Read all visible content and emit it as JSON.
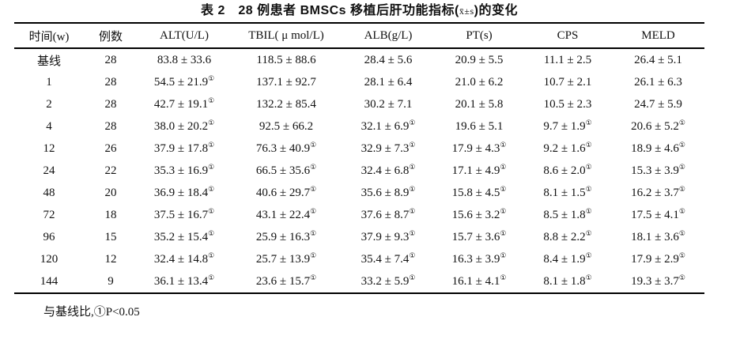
{
  "title": {
    "prefix": "表 2　28 例患者 BMSCs 移植后肝功能指标(",
    "stat": "x̄±s",
    "suffix": ")的变化"
  },
  "footnote": "与基线比,①P<0.05",
  "table": {
    "columns": [
      {
        "id": "time",
        "label": "时间(w)"
      },
      {
        "id": "cases",
        "label": "例数"
      },
      {
        "id": "alt",
        "label": "ALT(U/L)"
      },
      {
        "id": "tbil",
        "label": "TBIL( μ mol/L)"
      },
      {
        "id": "alb",
        "label": "ALB(g/L)"
      },
      {
        "id": "pt",
        "label": "PT(s)"
      },
      {
        "id": "cps",
        "label": "CPS"
      },
      {
        "id": "meld",
        "label": "MELD"
      }
    ],
    "rows": [
      [
        {
          "v": "基线",
          "s": ""
        },
        {
          "v": "28",
          "s": ""
        },
        {
          "v": "83.8 ± 33.6",
          "s": ""
        },
        {
          "v": "118.5 ± 88.6",
          "s": ""
        },
        {
          "v": "28.4 ± 5.6",
          "s": ""
        },
        {
          "v": "20.9 ± 5.5",
          "s": ""
        },
        {
          "v": "11.1 ± 2.5",
          "s": ""
        },
        {
          "v": "26.4 ± 5.1",
          "s": ""
        }
      ],
      [
        {
          "v": "1",
          "s": ""
        },
        {
          "v": "28",
          "s": ""
        },
        {
          "v": "54.5 ± 21.9",
          "s": "①"
        },
        {
          "v": "137.1 ± 92.7",
          "s": ""
        },
        {
          "v": "28.1 ± 6.4",
          "s": ""
        },
        {
          "v": "21.0 ± 6.2",
          "s": ""
        },
        {
          "v": "10.7 ± 2.1",
          "s": ""
        },
        {
          "v": "26.1 ± 6.3",
          "s": ""
        }
      ],
      [
        {
          "v": "2",
          "s": ""
        },
        {
          "v": "28",
          "s": ""
        },
        {
          "v": "42.7 ± 19.1",
          "s": "①"
        },
        {
          "v": "132.2 ± 85.4",
          "s": ""
        },
        {
          "v": "30.2 ± 7.1",
          "s": ""
        },
        {
          "v": "20.1 ± 5.8",
          "s": ""
        },
        {
          "v": "10.5 ± 2.3",
          "s": ""
        },
        {
          "v": "24.7 ± 5.9",
          "s": ""
        }
      ],
      [
        {
          "v": "4",
          "s": ""
        },
        {
          "v": "28",
          "s": ""
        },
        {
          "v": "38.0 ± 20.2",
          "s": "①"
        },
        {
          "v": "92.5 ± 66.2",
          "s": ""
        },
        {
          "v": "32.1 ± 6.9",
          "s": "①"
        },
        {
          "v": "19.6 ± 5.1",
          "s": ""
        },
        {
          "v": "9.7 ± 1.9",
          "s": "①"
        },
        {
          "v": "20.6 ± 5.2",
          "s": "①"
        }
      ],
      [
        {
          "v": "12",
          "s": ""
        },
        {
          "v": "26",
          "s": ""
        },
        {
          "v": "37.9 ± 17.8",
          "s": "①"
        },
        {
          "v": "76.3 ± 40.9",
          "s": "①"
        },
        {
          "v": "32.9 ± 7.3",
          "s": "①"
        },
        {
          "v": "17.9 ± 4.3",
          "s": "①"
        },
        {
          "v": "9.2 ± 1.6",
          "s": "①"
        },
        {
          "v": "18.9 ± 4.6",
          "s": "①"
        }
      ],
      [
        {
          "v": "24",
          "s": ""
        },
        {
          "v": "22",
          "s": ""
        },
        {
          "v": "35.3 ± 16.9",
          "s": "①"
        },
        {
          "v": "66.5 ± 35.6",
          "s": "①"
        },
        {
          "v": "32.4 ± 6.8",
          "s": "①"
        },
        {
          "v": "17.1 ± 4.9",
          "s": "①"
        },
        {
          "v": "8.6 ± 2.0",
          "s": "①"
        },
        {
          "v": "15.3 ± 3.9",
          "s": "①"
        }
      ],
      [
        {
          "v": "48",
          "s": ""
        },
        {
          "v": "20",
          "s": ""
        },
        {
          "v": "36.9 ± 18.4",
          "s": "①"
        },
        {
          "v": "40.6 ± 29.7",
          "s": "①"
        },
        {
          "v": "35.6 ± 8.9",
          "s": "①"
        },
        {
          "v": "15.8 ± 4.5",
          "s": "①"
        },
        {
          "v": "8.1 ± 1.5",
          "s": "①"
        },
        {
          "v": "16.2 ± 3.7",
          "s": "①"
        }
      ],
      [
        {
          "v": "72",
          "s": ""
        },
        {
          "v": "18",
          "s": ""
        },
        {
          "v": "37.5 ± 16.7",
          "s": "①"
        },
        {
          "v": "43.1 ± 22.4",
          "s": "①"
        },
        {
          "v": "37.6 ± 8.7",
          "s": "①"
        },
        {
          "v": "15.6 ± 3.2",
          "s": "①"
        },
        {
          "v": "8.5 ± 1.8",
          "s": "①"
        },
        {
          "v": "17.5 ± 4.1",
          "s": "①"
        }
      ],
      [
        {
          "v": "96",
          "s": ""
        },
        {
          "v": "15",
          "s": ""
        },
        {
          "v": "35.2 ± 15.4",
          "s": "①"
        },
        {
          "v": "25.9 ± 16.3",
          "s": "①"
        },
        {
          "v": "37.9 ± 9.3",
          "s": "①"
        },
        {
          "v": "15.7 ± 3.6",
          "s": "①"
        },
        {
          "v": "8.8 ± 2.2",
          "s": "①"
        },
        {
          "v": "18.1 ± 3.6",
          "s": "①"
        }
      ],
      [
        {
          "v": "120",
          "s": ""
        },
        {
          "v": "12",
          "s": ""
        },
        {
          "v": "32.4 ± 14.8",
          "s": "①"
        },
        {
          "v": "25.7 ± 13.9",
          "s": "①"
        },
        {
          "v": "35.4 ± 7.4",
          "s": "①"
        },
        {
          "v": "16.3 ± 3.9",
          "s": "①"
        },
        {
          "v": "8.4 ± 1.9",
          "s": "①"
        },
        {
          "v": "17.9 ± 2.9",
          "s": "①"
        }
      ],
      [
        {
          "v": "144",
          "s": ""
        },
        {
          "v": "9",
          "s": ""
        },
        {
          "v": "36.1 ± 13.4",
          "s": "①"
        },
        {
          "v": "23.6 ± 15.7",
          "s": "①"
        },
        {
          "v": "33.2 ± 5.9",
          "s": "①"
        },
        {
          "v": "16.1 ± 4.1",
          "s": "①"
        },
        {
          "v": "8.1 ± 1.8",
          "s": "①"
        },
        {
          "v": "19.3 ± 3.7",
          "s": "①"
        }
      ]
    ]
  }
}
